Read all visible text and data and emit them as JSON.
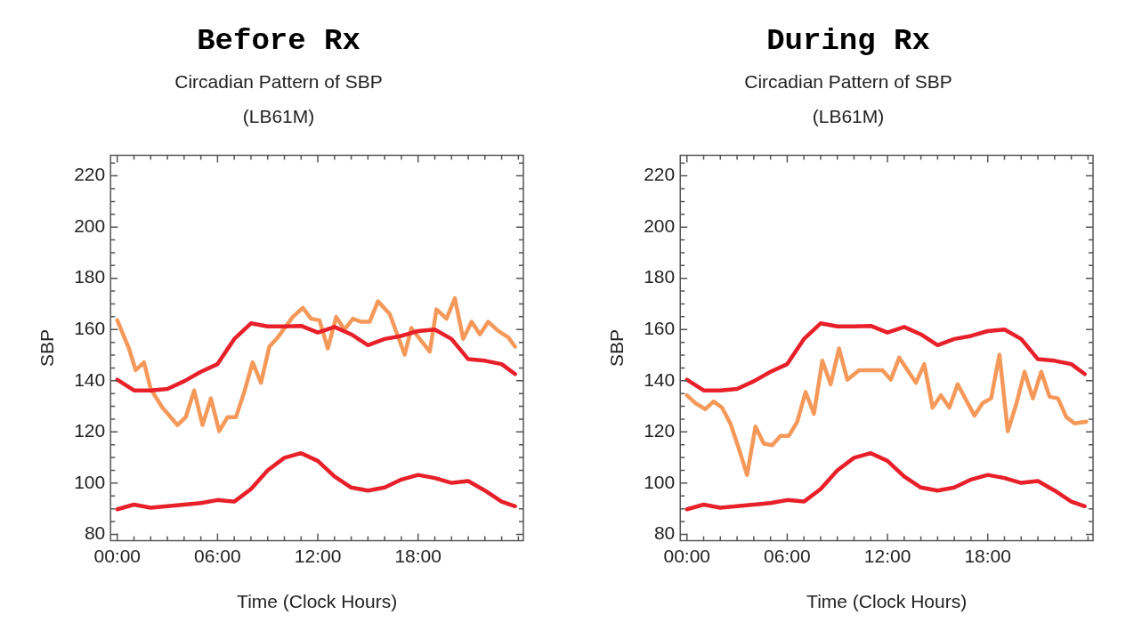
{
  "chart_data": [
    {
      "type": "line",
      "title": "Before Rx",
      "subtitle": "Circadian Pattern of SBP\n(LB61M)",
      "xlabel": "Time (Clock Hours)",
      "ylabel": "SBP",
      "series": [
        {
          "color": "#e8202a",
          "x": [
            0,
            1,
            2,
            3,
            4,
            5,
            6,
            7,
            8,
            9,
            10,
            11,
            12,
            13,
            14,
            15,
            16,
            17,
            18,
            19,
            20,
            21,
            22,
            23,
            23.8
          ],
          "values": [
            140.4,
            136.2,
            136.2,
            136.8,
            139.8,
            143.5,
            146.5,
            156.3,
            162.4,
            161.2,
            161.2,
            161.4,
            158.8,
            161,
            158.1,
            153.9,
            156.3,
            157.5,
            159.4,
            160,
            156.3,
            148.4,
            147.8,
            146.5,
            142.6
          ]
        },
        {
          "color": "#e8202a",
          "x": [
            0,
            1,
            2,
            3,
            4,
            5,
            6,
            7,
            8,
            9,
            10,
            11,
            12,
            13,
            14,
            15,
            16,
            17,
            18,
            19,
            20,
            21,
            22,
            23,
            23.8
          ],
          "values": [
            89.8,
            91.6,
            90.4,
            91,
            91.6,
            92.2,
            93.4,
            92.8,
            97.7,
            105,
            109.9,
            111.7,
            108.7,
            102.6,
            98.3,
            97.1,
            98.3,
            101.4,
            103.2,
            102,
            100.1,
            100.8,
            97.1,
            92.8,
            91
          ]
        },
        {
          "color": "#f5995a",
          "x": [
            0,
            0.7,
            1.1,
            1.6,
            2,
            2.7,
            3.6,
            4.1,
            4.6,
            5.1,
            5.6,
            6.1,
            6.6,
            7.1,
            7.6,
            8.1,
            8.6,
            9.1,
            9.6,
            10.5,
            11.1,
            11.6,
            12.1,
            12.6,
            13.1,
            13.6,
            14.1,
            14.6,
            15.1,
            15.6,
            16.3,
            17.2,
            17.6,
            18.1,
            18.7,
            19.1,
            19.7,
            20.2,
            20.7,
            21.2,
            21.7,
            22.2,
            22.8,
            23.4,
            23.8
          ],
          "values": [
            163.6,
            152.6,
            144.1,
            147.2,
            136.8,
            129.5,
            122.7,
            125.8,
            136.2,
            122.7,
            133.1,
            120.3,
            125.8,
            125.8,
            135.6,
            147.2,
            139.2,
            153.3,
            156.9,
            164.9,
            168.5,
            164.2,
            163.6,
            152.6,
            164.9,
            160,
            164.2,
            163,
            163,
            171,
            166.1,
            150.2,
            160.6,
            156.3,
            151.4,
            167.9,
            164.2,
            172.2,
            156.3,
            163,
            158.1,
            163,
            159.4,
            156.9,
            153.3
          ]
        }
      ],
      "xlim": [
        -0.4,
        24.3
      ],
      "xticks": [
        {
          "value": 0,
          "label": "00:00"
        },
        {
          "value": 1,
          "label": null
        },
        {
          "value": 2,
          "label": null
        },
        {
          "value": 3,
          "label": null
        },
        {
          "value": 4,
          "label": null
        },
        {
          "value": 5,
          "label": null
        },
        {
          "value": 6,
          "label": "06:00"
        },
        {
          "value": 7,
          "label": null
        },
        {
          "value": 8,
          "label": null
        },
        {
          "value": 9,
          "label": null
        },
        {
          "value": 10,
          "label": null
        },
        {
          "value": 11,
          "label": null
        },
        {
          "value": 12,
          "label": "12:00"
        },
        {
          "value": 13,
          "label": null
        },
        {
          "value": 14,
          "label": null
        },
        {
          "value": 15,
          "label": null
        },
        {
          "value": 16,
          "label": null
        },
        {
          "value": 17,
          "label": null
        },
        {
          "value": 18,
          "label": "18:00"
        },
        {
          "value": 19,
          "label": null
        },
        {
          "value": 20,
          "label": null
        },
        {
          "value": 21,
          "label": null
        },
        {
          "value": 22,
          "label": null
        },
        {
          "value": 23,
          "label": null
        },
        {
          "value": 24,
          "label": null
        }
      ],
      "ylim": [
        77.5,
        228
      ],
      "yticks": [
        80,
        {
          "value": 85,
          "label": null
        },
        {
          "value": 90,
          "label": null
        },
        {
          "value": 95,
          "label": null
        },
        100,
        {
          "value": 105,
          "label": null
        },
        {
          "value": 110,
          "label": null
        },
        {
          "value": 115,
          "label": null
        },
        120,
        {
          "value": 125,
          "label": null
        },
        {
          "value": 130,
          "label": null
        },
        {
          "value": 135,
          "label": null
        },
        140,
        {
          "value": 145,
          "label": null
        },
        {
          "value": 150,
          "label": null
        },
        {
          "value": 155,
          "label": null
        },
        160,
        {
          "value": 165,
          "label": null
        },
        {
          "value": 170,
          "label": null
        },
        {
          "value": 175,
          "label": null
        },
        180,
        {
          "value": 185,
          "label": null
        },
        {
          "value": 190,
          "label": null
        },
        {
          "value": 195,
          "label": null
        },
        200,
        {
          "value": 205,
          "label": null
        },
        {
          "value": 210,
          "label": null
        },
        {
          "value": 215,
          "label": null
        },
        220,
        {
          "value": 225,
          "label": null
        }
      ],
      "grid": false,
      "legend": false,
      "marker": "none",
      "line_style": "solid"
    },
    {
      "type": "line",
      "title": "During Rx",
      "subtitle": "Circadian Pattern of SBP\n(LB61M)",
      "xlabel": "Time (Clock Hours)",
      "ylabel": "SBP",
      "series": [
        {
          "color": "#e8202a",
          "x": [
            0,
            1,
            2,
            3,
            4,
            5,
            6,
            7,
            8,
            9,
            10,
            11,
            12,
            13,
            14,
            15,
            16,
            17,
            18,
            19,
            20,
            21,
            22,
            23,
            23.8
          ],
          "values": [
            140.4,
            136.2,
            136.2,
            136.8,
            139.8,
            143.5,
            146.5,
            156.3,
            162.4,
            161.2,
            161.2,
            161.4,
            158.8,
            161,
            158.1,
            153.9,
            156.3,
            157.5,
            159.4,
            160,
            156.3,
            148.4,
            147.8,
            146.5,
            142.6
          ]
        },
        {
          "color": "#e8202a",
          "x": [
            0,
            1,
            2,
            3,
            4,
            5,
            6,
            7,
            8,
            9,
            10,
            11,
            12,
            13,
            14,
            15,
            16,
            17,
            18,
            19,
            20,
            21,
            22,
            23,
            23.8
          ],
          "values": [
            89.8,
            91.6,
            90.4,
            91,
            91.6,
            92.2,
            93.4,
            92.8,
            97.7,
            105,
            109.9,
            111.7,
            108.7,
            102.6,
            98.3,
            97.1,
            98.3,
            101.4,
            103.2,
            102,
            100.1,
            100.8,
            97.1,
            92.8,
            91
          ]
        },
        {
          "color": "#f5995a",
          "x": [
            0,
            0.5,
            1.1,
            1.6,
            2.1,
            2.6,
            3.1,
            3.6,
            4.1,
            4.6,
            5.1,
            5.6,
            6.1,
            6.6,
            7.1,
            7.6,
            8.1,
            8.6,
            9.1,
            9.6,
            10.3,
            11.7,
            12.2,
            12.7,
            13.7,
            14.2,
            14.7,
            15.2,
            15.7,
            16.2,
            17.2,
            17.7,
            18.2,
            18.7,
            19.2,
            19.7,
            20.2,
            20.7,
            21.2,
            21.7,
            22.2,
            22.7,
            23.2,
            23.9
          ],
          "values": [
            134.3,
            131.3,
            128.9,
            131.9,
            129.5,
            123.3,
            113.6,
            103.2,
            122.1,
            115.4,
            114.8,
            118.5,
            118.5,
            124,
            135.6,
            127.1,
            147.8,
            138.6,
            152.6,
            140.4,
            144.1,
            144.1,
            140.4,
            149,
            139.2,
            146.5,
            129.5,
            134.3,
            129.5,
            138.6,
            126.4,
            131.3,
            133.1,
            150.2,
            120.3,
            130.7,
            143.5,
            133.1,
            143.5,
            133.7,
            133.1,
            125.8,
            123.3,
            124
          ]
        }
      ],
      "xlim": [
        -0.4,
        24.3
      ],
      "xticks": [
        {
          "value": 0,
          "label": "00:00"
        },
        {
          "value": 1,
          "label": null
        },
        {
          "value": 2,
          "label": null
        },
        {
          "value": 3,
          "label": null
        },
        {
          "value": 4,
          "label": null
        },
        {
          "value": 5,
          "label": null
        },
        {
          "value": 6,
          "label": "06:00"
        },
        {
          "value": 7,
          "label": null
        },
        {
          "value": 8,
          "label": null
        },
        {
          "value": 9,
          "label": null
        },
        {
          "value": 10,
          "label": null
        },
        {
          "value": 11,
          "label": null
        },
        {
          "value": 12,
          "label": "12:00"
        },
        {
          "value": 13,
          "label": null
        },
        {
          "value": 14,
          "label": null
        },
        {
          "value": 15,
          "label": null
        },
        {
          "value": 16,
          "label": null
        },
        {
          "value": 17,
          "label": null
        },
        {
          "value": 18,
          "label": "18:00"
        },
        {
          "value": 19,
          "label": null
        },
        {
          "value": 20,
          "label": null
        },
        {
          "value": 21,
          "label": null
        },
        {
          "value": 22,
          "label": null
        },
        {
          "value": 23,
          "label": null
        },
        {
          "value": 24,
          "label": null
        }
      ],
      "ylim": [
        77.5,
        228
      ],
      "yticks": [
        80,
        {
          "value": 85,
          "label": null
        },
        {
          "value": 90,
          "label": null
        },
        {
          "value": 95,
          "label": null
        },
        100,
        {
          "value": 105,
          "label": null
        },
        {
          "value": 110,
          "label": null
        },
        {
          "value": 115,
          "label": null
        },
        120,
        {
          "value": 125,
          "label": null
        },
        {
          "value": 130,
          "label": null
        },
        {
          "value": 135,
          "label": null
        },
        140,
        {
          "value": 145,
          "label": null
        },
        {
          "value": 150,
          "label": null
        },
        {
          "value": 155,
          "label": null
        },
        160,
        {
          "value": 165,
          "label": null
        },
        {
          "value": 170,
          "label": null
        },
        {
          "value": 175,
          "label": null
        },
        180,
        {
          "value": 185,
          "label": null
        },
        {
          "value": 190,
          "label": null
        },
        {
          "value": 195,
          "label": null
        },
        200,
        {
          "value": 205,
          "label": null
        },
        {
          "value": 210,
          "label": null
        },
        {
          "value": 215,
          "label": null
        },
        220,
        {
          "value": 225,
          "label": null
        }
      ],
      "grid": false,
      "legend": false,
      "marker": "none",
      "line_style": "solid"
    }
  ]
}
